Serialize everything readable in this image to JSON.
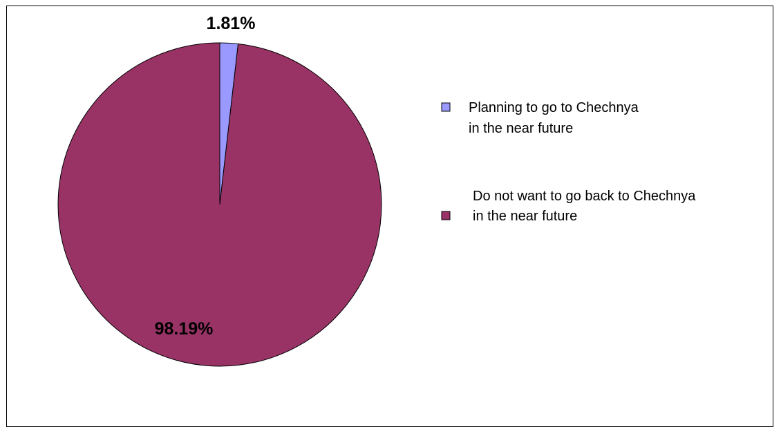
{
  "chart_data": {
    "type": "pie",
    "slices": [
      {
        "label": "Planning to go to Chechnya in the near future",
        "legend_lines": [
          "Planning to go to Chechnya",
          "in the near future"
        ],
        "value": 1.81,
        "display": "1.81%",
        "color": "#9999ff"
      },
      {
        "label": "Do not want to go back to Chechnya in the near future",
        "legend_lines": [
          "Do not want to go back to Chechnya",
          "in the near future"
        ],
        "value": 98.19,
        "display": "98.19%",
        "color": "#993366"
      }
    ],
    "legend_placement": "right",
    "start_angle": "12 o'clock",
    "direction": "clockwise"
  }
}
